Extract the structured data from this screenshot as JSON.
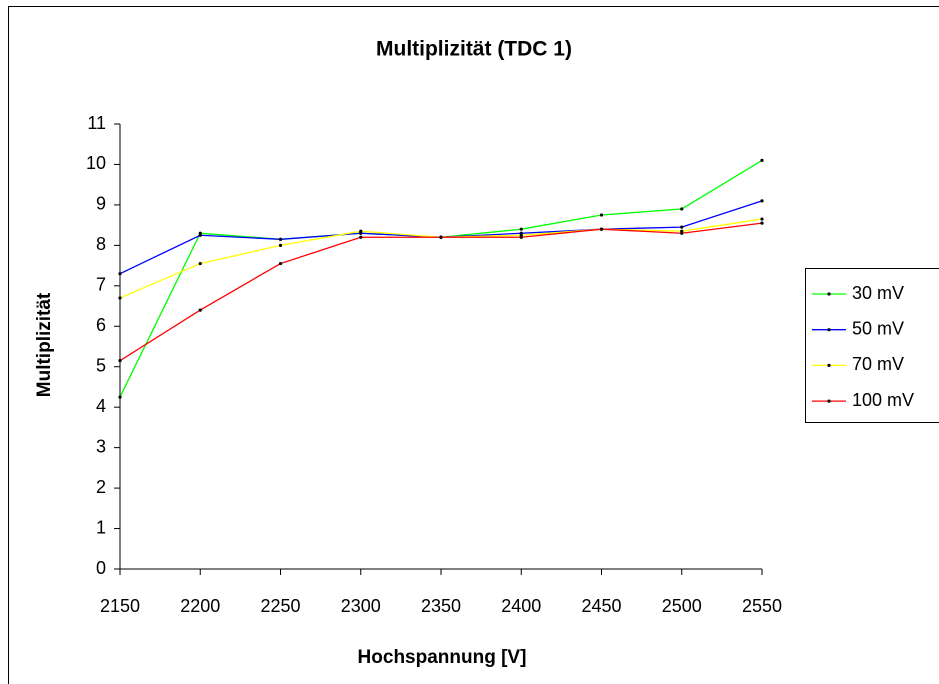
{
  "chart_data": {
    "type": "line",
    "title": "Multiplizität (TDC 1)",
    "x_label": "Hochspannung [V]",
    "y_label": "Multiplizität",
    "x": [
      2150,
      2200,
      2250,
      2300,
      2350,
      2400,
      2450,
      2500,
      2550
    ],
    "series": [
      {
        "name": "30 mV",
        "color": "#00ff00",
        "values": [
          4.25,
          8.3,
          8.15,
          8.3,
          8.2,
          8.4,
          8.75,
          8.9,
          10.1
        ]
      },
      {
        "name": "50 mV",
        "color": "#0000ff",
        "values": [
          7.3,
          8.25,
          8.15,
          8.3,
          8.2,
          8.3,
          8.4,
          8.45,
          9.1
        ]
      },
      {
        "name": "70 mV",
        "color": "#ffff00",
        "values": [
          6.7,
          7.55,
          8.0,
          8.35,
          8.2,
          8.25,
          8.4,
          8.35,
          8.65
        ]
      },
      {
        "name": "100 mV",
        "color": "#ff0000",
        "values": [
          5.15,
          6.4,
          7.55,
          8.2,
          8.2,
          8.2,
          8.4,
          8.3,
          8.55
        ]
      }
    ],
    "xlim": [
      2150,
      2550
    ],
    "xticks": [
      2150,
      2200,
      2250,
      2300,
      2350,
      2400,
      2450,
      2500,
      2550
    ],
    "ylim": [
      0,
      11
    ],
    "yticks": [
      0,
      1,
      2,
      3,
      4,
      5,
      6,
      7,
      8,
      9,
      10,
      11
    ],
    "grid": false,
    "legend": "right"
  }
}
